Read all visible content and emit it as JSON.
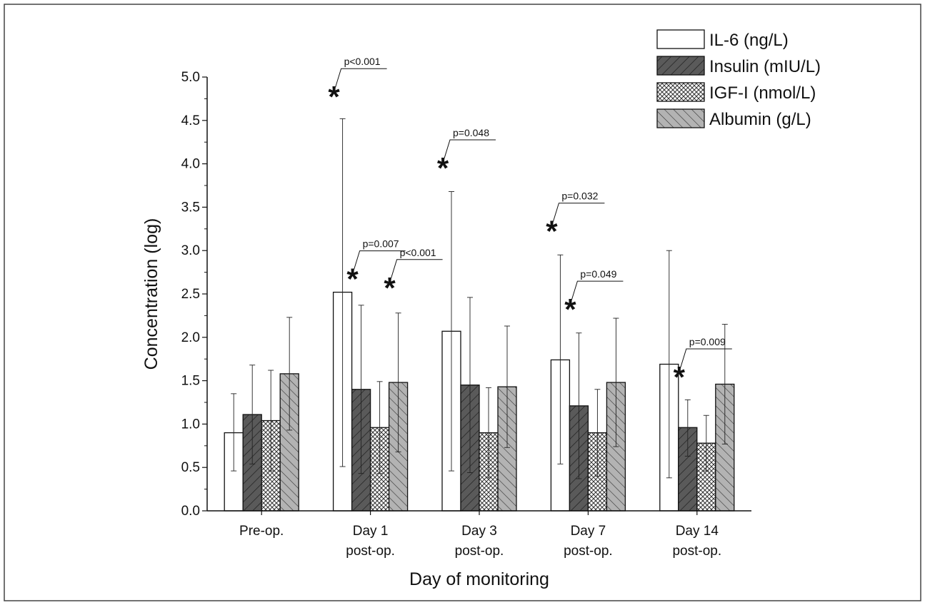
{
  "chart_data": {
    "type": "bar",
    "title": "",
    "xlabel": "Day of monitoring",
    "ylabel": "Concentration (log)",
    "ylim": [
      0,
      5.0
    ],
    "yticks": [
      "0.0",
      "0.5",
      "1.0",
      "1.5",
      "2.0",
      "2.5",
      "3.0",
      "3.5",
      "4.0",
      "4.5",
      "5.0"
    ],
    "categories": [
      [
        "Pre-op."
      ],
      [
        "Day 1",
        "post-op."
      ],
      [
        "Day 3",
        "post-op."
      ],
      [
        "Day 7",
        "post-op."
      ],
      [
        "Day 14",
        "post-op."
      ]
    ],
    "series": [
      {
        "name": "IL-6 (ng/L)",
        "pattern": "none",
        "values": [
          0.9,
          2.52,
          2.07,
          1.74,
          1.69
        ],
        "err_upper": [
          1.35,
          4.52,
          3.68,
          2.95,
          3.0
        ],
        "err_lower": [
          0.46,
          0.51,
          0.46,
          0.54,
          0.38
        ]
      },
      {
        "name": "Insulin (mIU/L)",
        "pattern": "dark-diagonal",
        "values": [
          1.11,
          1.4,
          1.45,
          1.21,
          0.96
        ],
        "err_upper": [
          1.68,
          2.37,
          2.46,
          2.05,
          1.28
        ],
        "err_lower": [
          0.54,
          0.43,
          0.44,
          0.37,
          0.63
        ]
      },
      {
        "name": "IGF-I (nmol/L)",
        "pattern": "crosshatch",
        "values": [
          1.04,
          0.96,
          0.9,
          0.9,
          0.78
        ],
        "err_upper": [
          1.62,
          1.49,
          1.42,
          1.4,
          1.1
        ],
        "err_lower": [
          0.46,
          0.43,
          0.38,
          0.4,
          0.46
        ]
      },
      {
        "name": "Albumin (g/L)",
        "pattern": "light-diagonal",
        "values": [
          1.58,
          1.48,
          1.43,
          1.48,
          1.46
        ],
        "err_upper": [
          2.23,
          2.28,
          2.13,
          2.22,
          2.15
        ],
        "err_lower": [
          0.93,
          0.68,
          0.73,
          0.74,
          0.77
        ]
      }
    ],
    "annotations": [
      {
        "category": 1,
        "series": 0,
        "text": "p<0.001",
        "star_y": 4.85
      },
      {
        "category": 1,
        "series": 1,
        "text": "p=0.007",
        "star_y": 2.75
      },
      {
        "category": 1,
        "series": 3,
        "text": "p<0.001",
        "star_y": 2.65
      },
      {
        "category": 2,
        "series": 0,
        "text": "p=0.048",
        "star_y": 4.03
      },
      {
        "category": 3,
        "series": 0,
        "text": "p=0.032",
        "star_y": 3.3
      },
      {
        "category": 3,
        "series": 1,
        "text": "p=0.049",
        "star_y": 2.4
      },
      {
        "category": 4,
        "series": 1,
        "text": "p=0.009",
        "star_y": 1.62
      }
    ],
    "legend_position": "top-right",
    "colors": {
      "insulin": "#5a5a5a",
      "albumin": "#b3b3b3",
      "outline": "#111111",
      "background": "#ffffff"
    }
  }
}
